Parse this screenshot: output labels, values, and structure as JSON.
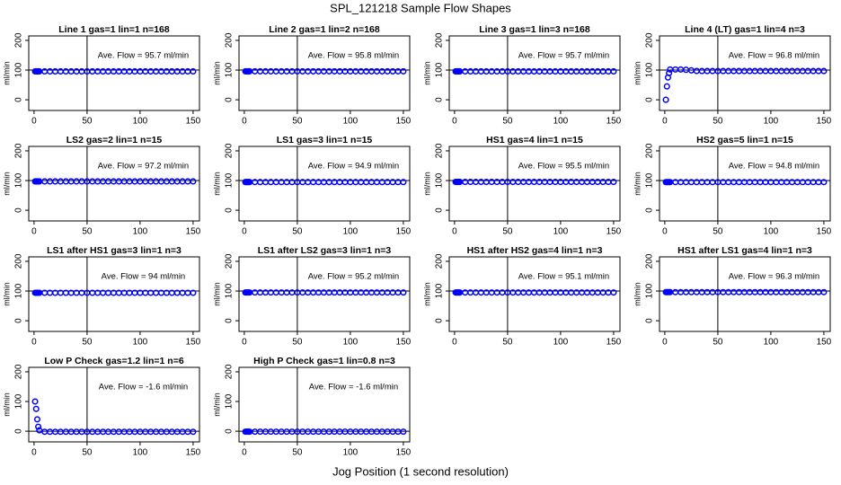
{
  "title": "SPL_121218  Sample Flow Shapes",
  "xlabel": "Jog Position (1 second resolution)",
  "chart_data": [
    {
      "type": "scatter",
      "title": "Line 1 gas=1 lin=1 n=168",
      "ylabel": "ml/min",
      "annotation": "Ave. Flow = 95.7 ml/min",
      "color": "#0000ff",
      "xlim": [
        -5,
        156
      ],
      "ylim": [
        -36,
        215
      ],
      "xticks": [
        0,
        50,
        100,
        150
      ],
      "yticks": [
        0,
        100,
        200
      ],
      "vline": 50,
      "hline": 100,
      "x": [
        1,
        2,
        3,
        4,
        5,
        10,
        15,
        20,
        25,
        30,
        35,
        40,
        45,
        50,
        55,
        60,
        65,
        70,
        75,
        80,
        85,
        90,
        95,
        100,
        105,
        110,
        115,
        120,
        125,
        130,
        135,
        140,
        145,
        150
      ],
      "values": [
        95.7,
        95.7,
        95.7,
        95.7,
        95.7,
        95.7,
        95.7,
        95.7,
        95.7,
        95.7,
        95.7,
        95.7,
        95.7,
        95.7,
        95.7,
        95.7,
        95.7,
        95.7,
        95.7,
        95.7,
        95.7,
        95.7,
        95.7,
        95.7,
        95.7,
        95.7,
        95.7,
        95.7,
        95.7,
        95.7,
        95.7,
        95.7,
        95.7,
        95.7
      ]
    },
    {
      "type": "scatter",
      "title": "Line 2 gas=1 lin=2 n=168",
      "ylabel": "ml/min",
      "annotation": "Ave. Flow = 95.8 ml/min",
      "color": "#0000ff",
      "xlim": [
        -5,
        156
      ],
      "ylim": [
        -36,
        215
      ],
      "xticks": [
        0,
        50,
        100,
        150
      ],
      "yticks": [
        0,
        100,
        200
      ],
      "vline": 50,
      "hline": 100,
      "x": [
        1,
        2,
        3,
        4,
        5,
        10,
        15,
        20,
        25,
        30,
        35,
        40,
        45,
        50,
        55,
        60,
        65,
        70,
        75,
        80,
        85,
        90,
        95,
        100,
        105,
        110,
        115,
        120,
        125,
        130,
        135,
        140,
        145,
        150
      ],
      "values": [
        95.8,
        95.8,
        95.8,
        95.8,
        95.8,
        95.8,
        95.8,
        95.8,
        95.8,
        95.8,
        95.8,
        95.8,
        95.8,
        95.8,
        95.8,
        95.8,
        95.8,
        95.8,
        95.8,
        95.8,
        95.8,
        95.8,
        95.8,
        95.8,
        95.8,
        95.8,
        95.8,
        95.8,
        95.8,
        95.8,
        95.8,
        95.8,
        95.8,
        95.8
      ]
    },
    {
      "type": "scatter",
      "title": "Line 3 gas=1 lin=3 n=168",
      "ylabel": "ml/min",
      "annotation": "Ave. Flow = 95.7 ml/min",
      "color": "#0000ff",
      "xlim": [
        -5,
        156
      ],
      "ylim": [
        -36,
        215
      ],
      "xticks": [
        0,
        50,
        100,
        150
      ],
      "yticks": [
        0,
        100,
        200
      ],
      "vline": 50,
      "hline": 100,
      "x": [
        1,
        2,
        3,
        4,
        5,
        10,
        15,
        20,
        25,
        30,
        35,
        40,
        45,
        50,
        55,
        60,
        65,
        70,
        75,
        80,
        85,
        90,
        95,
        100,
        105,
        110,
        115,
        120,
        125,
        130,
        135,
        140,
        145,
        150
      ],
      "values": [
        95.7,
        95.7,
        95.7,
        95.7,
        95.7,
        95.7,
        95.7,
        95.7,
        95.7,
        95.7,
        95.7,
        95.7,
        95.7,
        95.7,
        95.7,
        95.7,
        95.7,
        95.7,
        95.7,
        95.7,
        95.7,
        95.7,
        95.7,
        95.7,
        95.7,
        95.7,
        95.7,
        95.7,
        95.7,
        95.7,
        95.7,
        95.7,
        95.7,
        95.7
      ]
    },
    {
      "type": "scatter",
      "title": "Line 4 (LT) gas=1 lin=4 n=3",
      "ylabel": "ml/min",
      "annotation": "Ave. Flow = 96.8 ml/min",
      "color": "#0000ff",
      "xlim": [
        -5,
        156
      ],
      "ylim": [
        -36,
        215
      ],
      "xticks": [
        0,
        50,
        100,
        150
      ],
      "yticks": [
        0,
        100,
        200
      ],
      "vline": 50,
      "hline": 100,
      "x": [
        1,
        2,
        3,
        4,
        5,
        10,
        15,
        20,
        25,
        30,
        35,
        40,
        45,
        50,
        55,
        60,
        65,
        70,
        75,
        80,
        85,
        90,
        95,
        100,
        105,
        110,
        115,
        120,
        125,
        130,
        135,
        140,
        145,
        150
      ],
      "values": [
        0,
        45,
        75,
        90,
        102,
        102,
        102,
        101,
        99,
        97,
        96.8,
        96.8,
        96.8,
        96.8,
        96.8,
        96.8,
        96.8,
        96.8,
        96.8,
        96.8,
        96.8,
        96.8,
        96.8,
        96.8,
        96.8,
        96.8,
        96.8,
        96.8,
        96.8,
        96.8,
        96.8,
        96.8,
        96.8,
        96.8
      ]
    },
    {
      "type": "scatter",
      "title": "LS2 gas=2 lin=1 n=15",
      "ylabel": "ml/min",
      "annotation": "Ave. Flow = 97.2 ml/min",
      "color": "#0000ff",
      "xlim": [
        -5,
        156
      ],
      "ylim": [
        -36,
        215
      ],
      "xticks": [
        0,
        50,
        100,
        150
      ],
      "yticks": [
        0,
        100,
        200
      ],
      "vline": 50,
      "hline": 100,
      "x": [
        1,
        2,
        3,
        4,
        5,
        10,
        15,
        20,
        25,
        30,
        35,
        40,
        45,
        50,
        55,
        60,
        65,
        70,
        75,
        80,
        85,
        90,
        95,
        100,
        105,
        110,
        115,
        120,
        125,
        130,
        135,
        140,
        145,
        150
      ],
      "values": [
        97.2,
        97.2,
        97.2,
        97.2,
        97.2,
        97.2,
        97.2,
        97.2,
        97.2,
        97.2,
        97.2,
        97.2,
        97.2,
        97.2,
        97.2,
        97.2,
        97.2,
        97.2,
        97.2,
        97.2,
        97.2,
        97.2,
        97.2,
        97.2,
        97.2,
        97.2,
        97.2,
        97.2,
        97.2,
        97.2,
        97.2,
        97.2,
        97.2,
        97.2
      ]
    },
    {
      "type": "scatter",
      "title": "LS1 gas=3 lin=1 n=15",
      "ylabel": "ml/min",
      "annotation": "Ave. Flow = 94.9 ml/min",
      "color": "#0000ff",
      "xlim": [
        -5,
        156
      ],
      "ylim": [
        -36,
        215
      ],
      "xticks": [
        0,
        50,
        100,
        150
      ],
      "yticks": [
        0,
        100,
        200
      ],
      "vline": 50,
      "hline": 100,
      "x": [
        1,
        2,
        3,
        4,
        5,
        10,
        15,
        20,
        25,
        30,
        35,
        40,
        45,
        50,
        55,
        60,
        65,
        70,
        75,
        80,
        85,
        90,
        95,
        100,
        105,
        110,
        115,
        120,
        125,
        130,
        135,
        140,
        145,
        150
      ],
      "values": [
        94.9,
        94.9,
        94.9,
        94.9,
        94.9,
        94.9,
        94.9,
        94.9,
        94.9,
        94.9,
        94.9,
        94.9,
        94.9,
        94.9,
        94.9,
        94.9,
        94.9,
        94.9,
        94.9,
        94.9,
        94.9,
        94.9,
        94.9,
        94.9,
        94.9,
        94.9,
        94.9,
        94.9,
        94.9,
        94.9,
        94.9,
        94.9,
        94.9,
        94.9
      ]
    },
    {
      "type": "scatter",
      "title": "HS1 gas=4 lin=1 n=15",
      "ylabel": "ml/min",
      "annotation": "Ave. Flow = 95.5 ml/min",
      "color": "#0000ff",
      "xlim": [
        -5,
        156
      ],
      "ylim": [
        -36,
        215
      ],
      "xticks": [
        0,
        50,
        100,
        150
      ],
      "yticks": [
        0,
        100,
        200
      ],
      "vline": 50,
      "hline": 100,
      "x": [
        1,
        2,
        3,
        4,
        5,
        10,
        15,
        20,
        25,
        30,
        35,
        40,
        45,
        50,
        55,
        60,
        65,
        70,
        75,
        80,
        85,
        90,
        95,
        100,
        105,
        110,
        115,
        120,
        125,
        130,
        135,
        140,
        145,
        150
      ],
      "values": [
        95.5,
        95.5,
        95.5,
        95.5,
        95.5,
        95.5,
        95.5,
        95.5,
        95.5,
        95.5,
        95.5,
        95.5,
        95.5,
        95.5,
        95.5,
        95.5,
        95.5,
        95.5,
        95.5,
        95.5,
        95.5,
        95.5,
        95.5,
        95.5,
        95.5,
        95.5,
        95.5,
        95.5,
        95.5,
        95.5,
        95.5,
        95.5,
        95.5,
        95.5
      ]
    },
    {
      "type": "scatter",
      "title": "HS2 gas=5 lin=1 n=15",
      "ylabel": "ml/min",
      "annotation": "Ave. Flow = 94.8 ml/min",
      "color": "#0000ff",
      "xlim": [
        -5,
        156
      ],
      "ylim": [
        -36,
        215
      ],
      "xticks": [
        0,
        50,
        100,
        150
      ],
      "yticks": [
        0,
        100,
        200
      ],
      "vline": 50,
      "hline": 100,
      "x": [
        1,
        2,
        3,
        4,
        5,
        10,
        15,
        20,
        25,
        30,
        35,
        40,
        45,
        50,
        55,
        60,
        65,
        70,
        75,
        80,
        85,
        90,
        95,
        100,
        105,
        110,
        115,
        120,
        125,
        130,
        135,
        140,
        145,
        150
      ],
      "values": [
        94.8,
        94.8,
        94.8,
        94.8,
        94.8,
        94.8,
        94.8,
        94.8,
        94.8,
        94.8,
        94.8,
        94.8,
        94.8,
        94.8,
        94.8,
        94.8,
        94.8,
        94.8,
        94.8,
        94.8,
        94.8,
        94.8,
        94.8,
        94.8,
        94.8,
        94.8,
        94.8,
        94.8,
        94.8,
        94.8,
        94.8,
        94.8,
        94.8,
        94.8
      ]
    },
    {
      "type": "scatter",
      "title": "LS1 after HS1 gas=3 lin=1 n=3",
      "ylabel": "ml/min",
      "annotation": "Ave. Flow = 94 ml/min",
      "color": "#0000ff",
      "xlim": [
        -5,
        156
      ],
      "ylim": [
        -36,
        215
      ],
      "xticks": [
        0,
        50,
        100,
        150
      ],
      "yticks": [
        0,
        100,
        200
      ],
      "vline": 50,
      "hline": 100,
      "x": [
        1,
        2,
        3,
        4,
        5,
        10,
        15,
        20,
        25,
        30,
        35,
        40,
        45,
        50,
        55,
        60,
        65,
        70,
        75,
        80,
        85,
        90,
        95,
        100,
        105,
        110,
        115,
        120,
        125,
        130,
        135,
        140,
        145,
        150
      ],
      "values": [
        94,
        94,
        94,
        94,
        94,
        94,
        94,
        94,
        94,
        94,
        94,
        94,
        94,
        94,
        94,
        94,
        94,
        94,
        94,
        94,
        94,
        94,
        94,
        94,
        94,
        94,
        94,
        94,
        94,
        94,
        94,
        94,
        94,
        94
      ]
    },
    {
      "type": "scatter",
      "title": "LS1 after LS2 gas=3 lin=1 n=3",
      "ylabel": "ml/min",
      "annotation": "Ave. Flow = 95.2 ml/min",
      "color": "#0000ff",
      "xlim": [
        -5,
        156
      ],
      "ylim": [
        -36,
        215
      ],
      "xticks": [
        0,
        50,
        100,
        150
      ],
      "yticks": [
        0,
        100,
        200
      ],
      "vline": 50,
      "hline": 100,
      "x": [
        1,
        2,
        3,
        4,
        5,
        10,
        15,
        20,
        25,
        30,
        35,
        40,
        45,
        50,
        55,
        60,
        65,
        70,
        75,
        80,
        85,
        90,
        95,
        100,
        105,
        110,
        115,
        120,
        125,
        130,
        135,
        140,
        145,
        150
      ],
      "values": [
        95.2,
        95.2,
        95.2,
        95.2,
        95.2,
        95.2,
        95.2,
        95.2,
        95.2,
        95.2,
        95.2,
        95.2,
        95.2,
        95.2,
        95.2,
        95.2,
        95.2,
        95.2,
        95.2,
        95.2,
        95.2,
        95.2,
        95.2,
        95.2,
        95.2,
        95.2,
        95.2,
        95.2,
        95.2,
        95.2,
        95.2,
        95.2,
        95.2,
        95.2
      ]
    },
    {
      "type": "scatter",
      "title": "HS1 after HS2 gas=4 lin=1 n=3",
      "ylabel": "ml/min",
      "annotation": "Ave. Flow = 95.1 ml/min",
      "color": "#0000ff",
      "xlim": [
        -5,
        156
      ],
      "ylim": [
        -36,
        215
      ],
      "xticks": [
        0,
        50,
        100,
        150
      ],
      "yticks": [
        0,
        100,
        200
      ],
      "vline": 50,
      "hline": 100,
      "x": [
        1,
        2,
        3,
        4,
        5,
        10,
        15,
        20,
        25,
        30,
        35,
        40,
        45,
        50,
        55,
        60,
        65,
        70,
        75,
        80,
        85,
        90,
        95,
        100,
        105,
        110,
        115,
        120,
        125,
        130,
        135,
        140,
        145,
        150
      ],
      "values": [
        95.1,
        95.1,
        95.1,
        95.1,
        95.1,
        95.1,
        95.1,
        95.1,
        95.1,
        95.1,
        95.1,
        95.1,
        95.1,
        95.1,
        95.1,
        95.1,
        95.1,
        95.1,
        95.1,
        95.1,
        95.1,
        95.1,
        95.1,
        95.1,
        95.1,
        95.1,
        95.1,
        95.1,
        95.1,
        95.1,
        95.1,
        95.1,
        95.1,
        95.1
      ]
    },
    {
      "type": "scatter",
      "title": "HS1 after LS1 gas=4 lin=1 n=3",
      "ylabel": "ml/min",
      "annotation": "Ave. Flow = 96.3 ml/min",
      "color": "#0000ff",
      "xlim": [
        -5,
        156
      ],
      "ylim": [
        -36,
        215
      ],
      "xticks": [
        0,
        50,
        100,
        150
      ],
      "yticks": [
        0,
        100,
        200
      ],
      "vline": 50,
      "hline": 100,
      "x": [
        1,
        2,
        3,
        4,
        5,
        10,
        15,
        20,
        25,
        30,
        35,
        40,
        45,
        50,
        55,
        60,
        65,
        70,
        75,
        80,
        85,
        90,
        95,
        100,
        105,
        110,
        115,
        120,
        125,
        130,
        135,
        140,
        145,
        150
      ],
      "values": [
        96.3,
        96.3,
        96.3,
        96.3,
        96.3,
        96.3,
        96.3,
        96.3,
        96.3,
        96.3,
        96.3,
        96.3,
        96.3,
        96.3,
        96.3,
        96.3,
        96.3,
        96.3,
        96.3,
        96.3,
        96.3,
        96.3,
        96.3,
        96.3,
        96.3,
        96.3,
        96.3,
        96.3,
        96.3,
        96.3,
        96.3,
        96.3,
        96.3,
        96.3
      ]
    },
    {
      "type": "scatter",
      "title": "Low P Check gas=1.2 lin=1 n=6",
      "ylabel": "ml/min",
      "annotation": "Ave. Flow = -1.6 ml/min",
      "color": "#0000ff",
      "xlim": [
        -5,
        156
      ],
      "ylim": [
        -36,
        215
      ],
      "xticks": [
        0,
        50,
        100,
        150
      ],
      "yticks": [
        0,
        100,
        200
      ],
      "vline": 50,
      "hline": 0,
      "x": [
        1,
        2,
        3,
        4,
        5,
        10,
        15,
        20,
        25,
        30,
        35,
        40,
        45,
        50,
        55,
        60,
        65,
        70,
        75,
        80,
        85,
        90,
        95,
        100,
        105,
        110,
        115,
        120,
        125,
        130,
        135,
        140,
        145,
        150
      ],
      "values": [
        100,
        75,
        40,
        15,
        3,
        -2,
        -2,
        -2,
        -2,
        -2,
        -2,
        -2,
        -2,
        -2,
        -2,
        -2,
        -2,
        -2,
        -2,
        -2,
        -2,
        -2,
        -2,
        -2,
        -2,
        -2,
        -2,
        -2,
        -2,
        -2,
        -2,
        -2,
        -2,
        -2
      ]
    },
    {
      "type": "scatter",
      "title": "High P Check gas=1 lin=0.8 n=3",
      "ylabel": "ml/min",
      "annotation": "Ave. Flow = -1.6 ml/min",
      "color": "#0000ff",
      "xlim": [
        -5,
        156
      ],
      "ylim": [
        -36,
        215
      ],
      "xticks": [
        0,
        50,
        100,
        150
      ],
      "yticks": [
        0,
        100,
        200
      ],
      "vline": 50,
      "hline": 0,
      "x": [
        1,
        2,
        3,
        4,
        5,
        10,
        15,
        20,
        25,
        30,
        35,
        40,
        45,
        50,
        55,
        60,
        65,
        70,
        75,
        80,
        85,
        90,
        95,
        100,
        105,
        110,
        115,
        120,
        125,
        130,
        135,
        140,
        145,
        150
      ],
      "values": [
        -1.6,
        -1.6,
        -1.6,
        -1.6,
        -1.6,
        -1.6,
        -1.6,
        -1.6,
        -1.6,
        -1.6,
        -1.6,
        -1.6,
        -1.6,
        -1.6,
        -1.6,
        -1.6,
        -1.6,
        -1.6,
        -1.6,
        -1.6,
        -1.6,
        -1.6,
        -1.6,
        -1.6,
        -1.6,
        -1.6,
        -1.6,
        -1.6,
        -1.6,
        -1.6,
        -1.6,
        -1.6,
        -1.6,
        -1.6
      ]
    }
  ]
}
